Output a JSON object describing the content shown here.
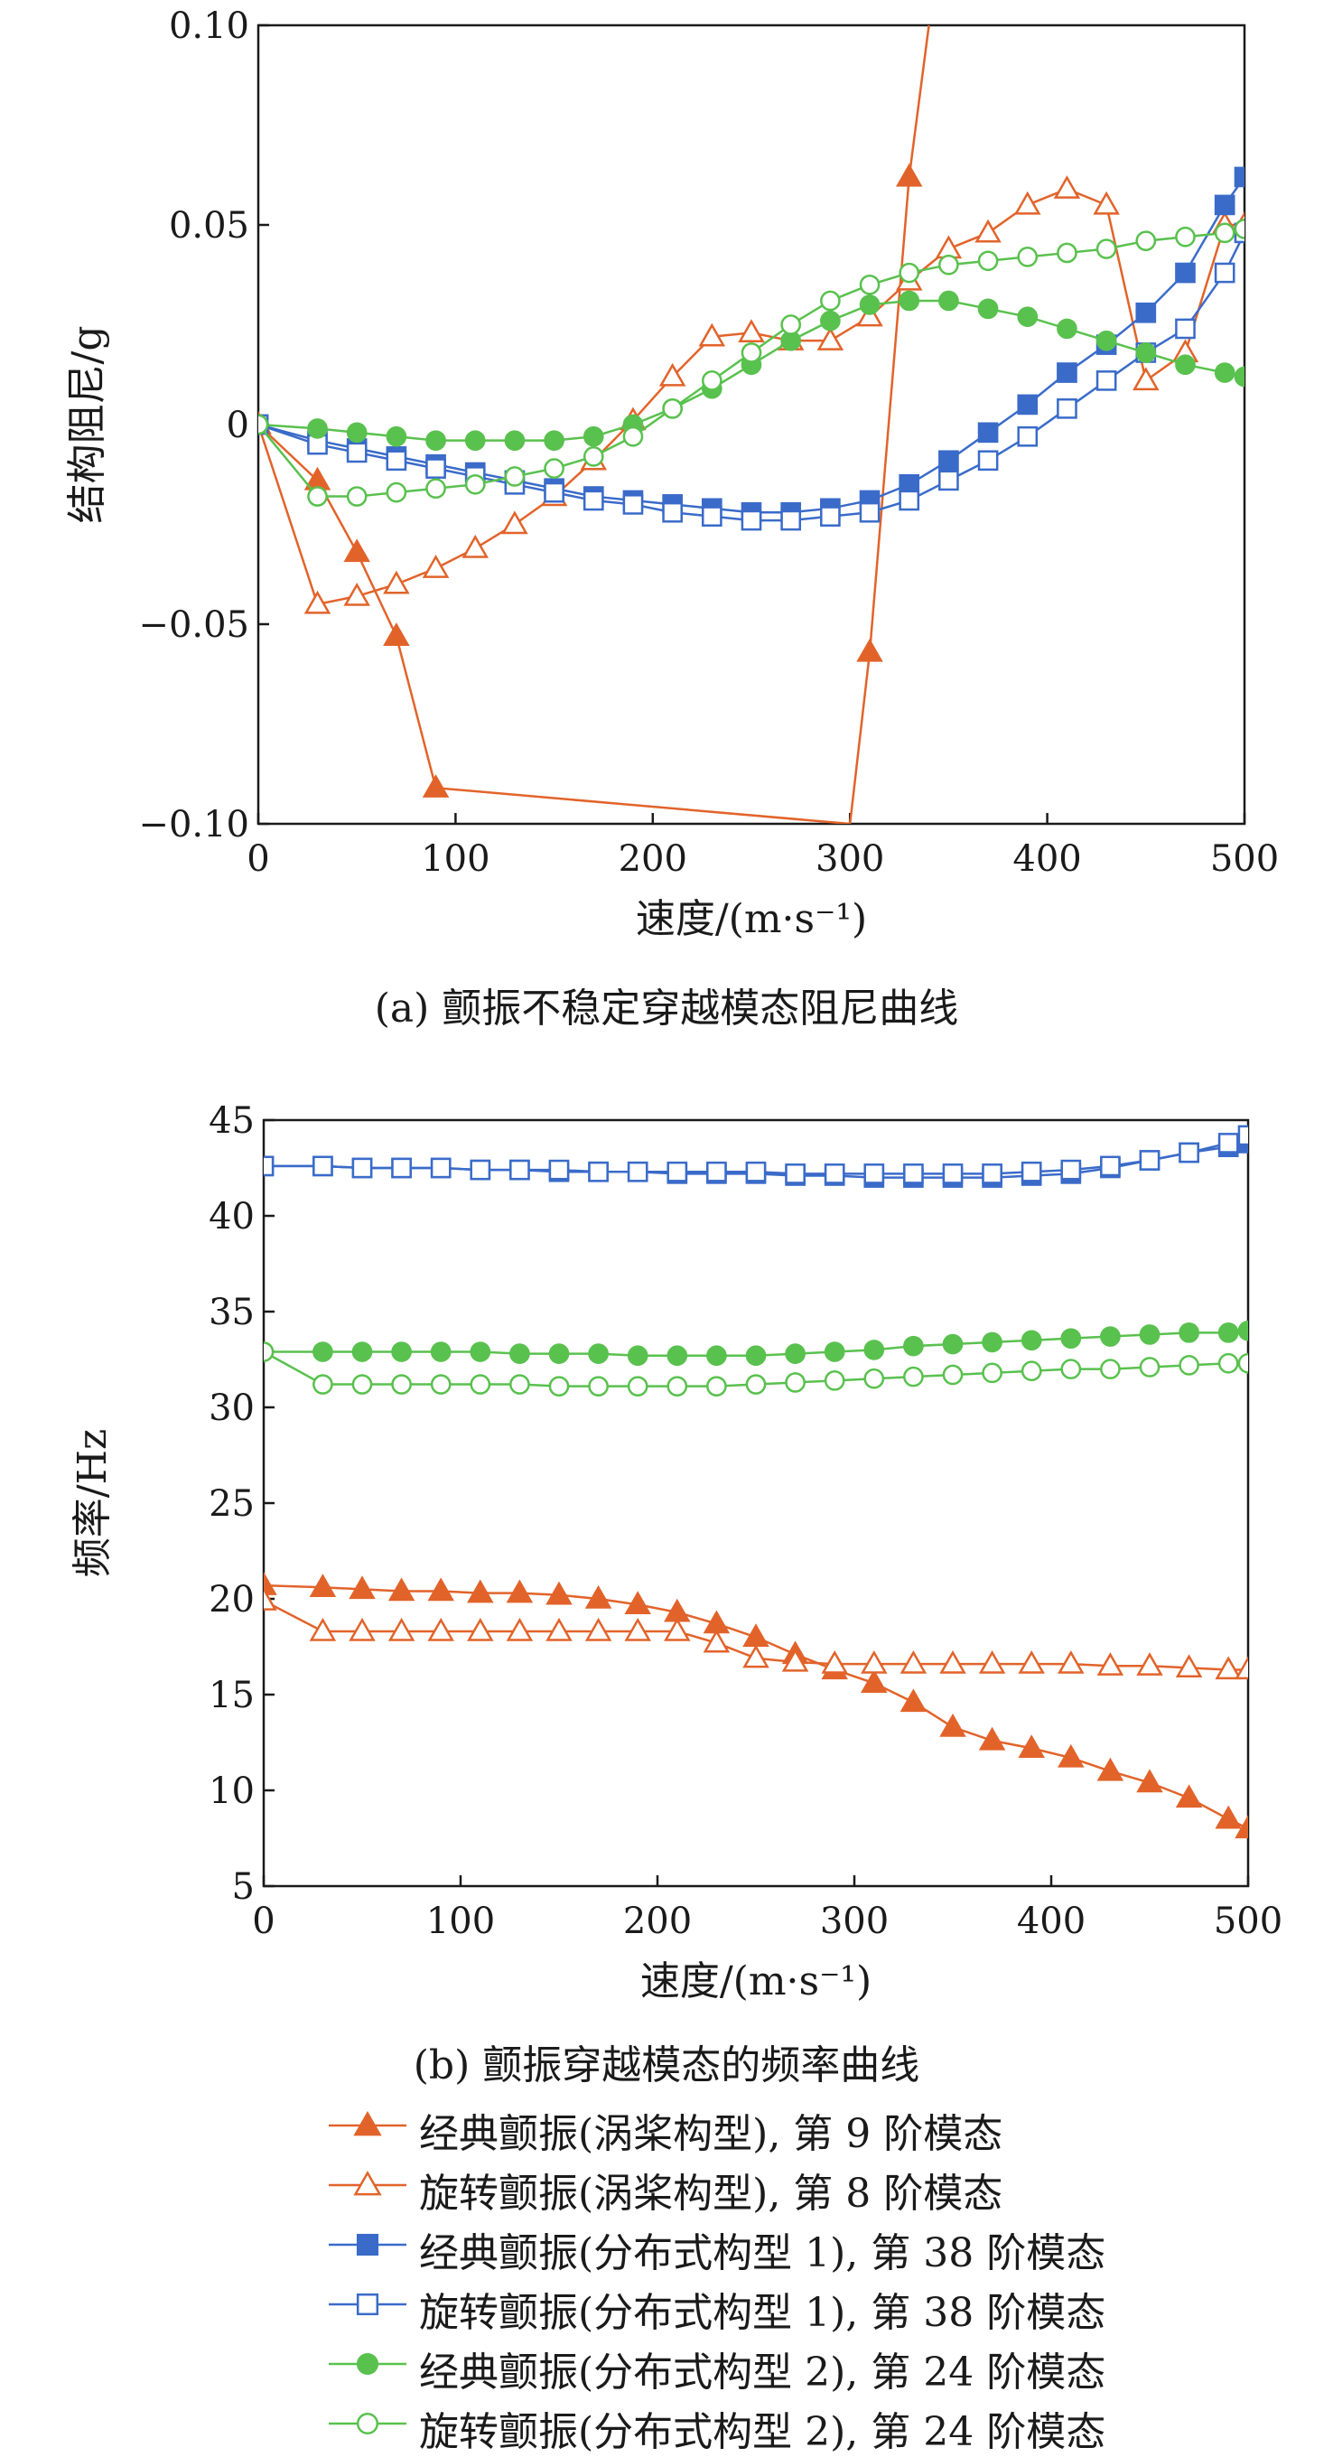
{
  "chart_data": [
    {
      "type": "line",
      "caption": "(a) 颤振不稳定穿越模态阻尼曲线",
      "xlabel": "速度/(m·s⁻¹)",
      "ylabel": "结构阻尼/g",
      "xlim": [
        0,
        500
      ],
      "ylim": [
        -0.1,
        0.1
      ],
      "xticks": [
        "0",
        "100",
        "200",
        "300",
        "400",
        "500"
      ],
      "yticks": [
        "−0.10",
        "−0.05",
        "0",
        "0.05",
        "0.10"
      ],
      "grid": false,
      "series": [
        {
          "name": "经典颤振(涡桨构型), 第 9 阶模态",
          "color": "#E2632A",
          "marker": "triangle-filled",
          "x": [
            0,
            30,
            50,
            70,
            90,
            300,
            310,
            330,
            340
          ],
          "y": [
            0,
            -0.014,
            -0.032,
            -0.053,
            -0.091,
            -0.1,
            -0.057,
            0.062,
            0.1
          ]
        },
        {
          "name": "旋转颤振(涡桨构型), 第 8 阶模态",
          "color": "#E2632A",
          "marker": "triangle-open",
          "x": [
            0,
            30,
            50,
            70,
            90,
            110,
            130,
            150,
            170,
            190,
            210,
            230,
            250,
            270,
            290,
            310,
            330,
            350,
            370,
            390,
            410,
            430,
            450,
            470,
            490,
            500
          ],
          "y": [
            0,
            -0.045,
            -0.043,
            -0.04,
            -0.036,
            -0.031,
            -0.025,
            -0.018,
            -0.009,
            0.001,
            0.012,
            0.022,
            0.023,
            0.021,
            0.021,
            0.027,
            0.036,
            0.044,
            0.048,
            0.055,
            0.059,
            0.055,
            0.011,
            0.018,
            0.05,
            0.05
          ]
        },
        {
          "name": "经典颤振(分布式构型 1), 第 38 阶模态",
          "color": "#3A6BC9",
          "marker": "square-filled",
          "x": [
            0,
            30,
            50,
            70,
            90,
            110,
            130,
            150,
            170,
            190,
            210,
            230,
            250,
            270,
            290,
            310,
            330,
            350,
            370,
            390,
            410,
            430,
            450,
            470,
            490,
            500
          ],
          "y": [
            0,
            -0.004,
            -0.006,
            -0.008,
            -0.01,
            -0.012,
            -0.014,
            -0.016,
            -0.018,
            -0.019,
            -0.02,
            -0.021,
            -0.022,
            -0.022,
            -0.021,
            -0.019,
            -0.015,
            -0.009,
            -0.002,
            0.005,
            0.013,
            0.02,
            0.028,
            0.038,
            0.055,
            0.062
          ]
        },
        {
          "name": "旋转颤振(分布式构型 1), 第 38 阶模态",
          "color": "#3A6BC9",
          "marker": "square-open",
          "x": [
            0,
            30,
            50,
            70,
            90,
            110,
            130,
            150,
            170,
            190,
            210,
            230,
            250,
            270,
            290,
            310,
            330,
            350,
            370,
            390,
            410,
            430,
            450,
            470,
            490,
            500
          ],
          "y": [
            0,
            -0.005,
            -0.007,
            -0.009,
            -0.011,
            -0.013,
            -0.015,
            -0.017,
            -0.019,
            -0.02,
            -0.022,
            -0.023,
            -0.024,
            -0.024,
            -0.023,
            -0.022,
            -0.019,
            -0.014,
            -0.009,
            -0.003,
            0.004,
            0.011,
            0.018,
            0.024,
            0.038,
            0.048
          ]
        },
        {
          "name": "经典颤振(分布式构型 2), 第 24 阶模态",
          "color": "#59C14E",
          "marker": "circle-filled",
          "x": [
            0,
            30,
            50,
            70,
            90,
            110,
            130,
            150,
            170,
            190,
            210,
            230,
            250,
            270,
            290,
            310,
            330,
            350,
            370,
            390,
            410,
            430,
            450,
            470,
            490,
            500
          ],
          "y": [
            0,
            -0.001,
            -0.002,
            -0.003,
            -0.004,
            -0.004,
            -0.004,
            -0.004,
            -0.003,
            0,
            0.004,
            0.009,
            0.015,
            0.021,
            0.026,
            0.03,
            0.031,
            0.031,
            0.029,
            0.027,
            0.024,
            0.021,
            0.018,
            0.015,
            0.013,
            0.012
          ]
        },
        {
          "name": "旋转颤振(分布式构型 2), 第 24 阶模态",
          "color": "#59C14E",
          "marker": "circle-open",
          "x": [
            0,
            30,
            50,
            70,
            90,
            110,
            130,
            150,
            170,
            190,
            210,
            230,
            250,
            270,
            290,
            310,
            330,
            350,
            370,
            390,
            410,
            430,
            450,
            470,
            490,
            500
          ],
          "y": [
            0,
            -0.018,
            -0.018,
            -0.017,
            -0.016,
            -0.015,
            -0.013,
            -0.011,
            -0.008,
            -0.003,
            0.004,
            0.011,
            0.018,
            0.025,
            0.031,
            0.035,
            0.038,
            0.04,
            0.041,
            0.042,
            0.043,
            0.044,
            0.046,
            0.047,
            0.048,
            0.049
          ]
        }
      ]
    },
    {
      "type": "line",
      "caption": "(b) 颤振穿越模态的频率曲线",
      "xlabel": "速度/(m·s⁻¹)",
      "ylabel": "频率/Hz",
      "xlim": [
        0,
        500
      ],
      "ylim": [
        5,
        45
      ],
      "xticks": [
        "0",
        "100",
        "200",
        "300",
        "400",
        "500"
      ],
      "yticks": [
        "5",
        "10",
        "15",
        "20",
        "25",
        "30",
        "35",
        "40",
        "45"
      ],
      "grid": false,
      "series": [
        {
          "name": "经典颤振(涡桨构型), 第 9 阶模态",
          "color": "#E2632A",
          "marker": "triangle-filled",
          "x": [
            0,
            30,
            50,
            70,
            90,
            110,
            130,
            150,
            170,
            190,
            210,
            230,
            250,
            270,
            290,
            310,
            330,
            350,
            370,
            390,
            410,
            430,
            450,
            470,
            490,
            500
          ],
          "y": [
            20.7,
            20.6,
            20.5,
            20.4,
            20.4,
            20.3,
            20.3,
            20.2,
            20.0,
            19.7,
            19.3,
            18.7,
            18.0,
            17.1,
            16.3,
            15.6,
            14.6,
            13.3,
            12.6,
            12.2,
            11.7,
            11.0,
            10.4,
            9.6,
            8.5,
            8.0
          ]
        },
        {
          "name": "旋转颤振(涡桨构型), 第 8 阶模态",
          "color": "#E2632A",
          "marker": "triangle-open",
          "x": [
            0,
            30,
            50,
            70,
            90,
            110,
            130,
            150,
            170,
            190,
            210,
            230,
            250,
            270,
            290,
            310,
            330,
            350,
            370,
            390,
            410,
            430,
            450,
            470,
            490,
            500
          ],
          "y": [
            19.9,
            18.3,
            18.3,
            18.3,
            18.3,
            18.3,
            18.3,
            18.3,
            18.3,
            18.3,
            18.3,
            17.7,
            16.9,
            16.7,
            16.6,
            16.6,
            16.6,
            16.6,
            16.6,
            16.6,
            16.6,
            16.5,
            16.5,
            16.4,
            16.3,
            16.3
          ]
        },
        {
          "name": "经典颤振(分布式构型 1), 第 38 阶模态",
          "color": "#3A6BC9",
          "marker": "square-filled",
          "x": [
            0,
            30,
            50,
            70,
            90,
            110,
            130,
            150,
            170,
            190,
            210,
            230,
            250,
            270,
            290,
            310,
            330,
            350,
            370,
            390,
            410,
            430,
            450,
            470,
            490,
            500
          ],
          "y": [
            42.6,
            42.6,
            42.5,
            42.5,
            42.5,
            42.4,
            42.4,
            42.3,
            42.3,
            42.3,
            42.2,
            42.2,
            42.2,
            42.1,
            42.1,
            42.0,
            42.0,
            42.0,
            42.0,
            42.1,
            42.2,
            42.5,
            42.9,
            43.3,
            43.6,
            43.8
          ]
        },
        {
          "name": "旋转颤振(分布式构型 1), 第 38 阶模态",
          "color": "#3A6BC9",
          "marker": "square-open",
          "x": [
            0,
            30,
            50,
            70,
            90,
            110,
            130,
            150,
            170,
            190,
            210,
            230,
            250,
            270,
            290,
            310,
            330,
            350,
            370,
            390,
            410,
            430,
            450,
            470,
            490,
            500
          ],
          "y": [
            42.6,
            42.6,
            42.5,
            42.5,
            42.5,
            42.4,
            42.4,
            42.4,
            42.3,
            42.3,
            42.3,
            42.3,
            42.3,
            42.2,
            42.2,
            42.2,
            42.2,
            42.2,
            42.2,
            42.3,
            42.4,
            42.6,
            42.9,
            43.3,
            43.8,
            44.2
          ]
        },
        {
          "name": "经典颤振(分布式构型 2), 第 24 阶模态",
          "color": "#59C14E",
          "marker": "circle-filled",
          "x": [
            0,
            30,
            50,
            70,
            90,
            110,
            130,
            150,
            170,
            190,
            210,
            230,
            250,
            270,
            290,
            310,
            330,
            350,
            370,
            390,
            410,
            430,
            450,
            470,
            490,
            500
          ],
          "y": [
            32.9,
            32.9,
            32.9,
            32.9,
            32.9,
            32.9,
            32.8,
            32.8,
            32.8,
            32.7,
            32.7,
            32.7,
            32.7,
            32.8,
            32.9,
            33.0,
            33.2,
            33.3,
            33.4,
            33.5,
            33.6,
            33.7,
            33.8,
            33.9,
            33.9,
            34.0
          ]
        },
        {
          "name": "旋转颤振(分布式构型 2), 第 24 阶模态",
          "color": "#59C14E",
          "marker": "circle-open",
          "x": [
            0,
            30,
            50,
            70,
            90,
            110,
            130,
            150,
            170,
            190,
            210,
            230,
            250,
            270,
            290,
            310,
            330,
            350,
            370,
            390,
            410,
            430,
            450,
            470,
            490,
            500
          ],
          "y": [
            32.9,
            31.2,
            31.2,
            31.2,
            31.2,
            31.2,
            31.2,
            31.1,
            31.1,
            31.1,
            31.1,
            31.1,
            31.2,
            31.3,
            31.4,
            31.5,
            31.6,
            31.7,
            31.8,
            31.9,
            32.0,
            32.0,
            32.1,
            32.2,
            32.3,
            32.3
          ]
        }
      ]
    }
  ],
  "legend": [
    {
      "label": "经典颤振(涡桨构型), 第 9 阶模态",
      "color": "#E2632A",
      "marker": "triangle-filled"
    },
    {
      "label": "旋转颤振(涡桨构型), 第 8 阶模态",
      "color": "#E2632A",
      "marker": "triangle-open"
    },
    {
      "label": "经典颤振(分布式构型 1), 第 38 阶模态",
      "color": "#3A6BC9",
      "marker": "square-filled"
    },
    {
      "label": "旋转颤振(分布式构型 1), 第 38 阶模态",
      "color": "#3A6BC9",
      "marker": "square-open"
    },
    {
      "label": "经典颤振(分布式构型 2), 第 24 阶模态",
      "color": "#59C14E",
      "marker": "circle-filled"
    },
    {
      "label": "旋转颤振(分布式构型 2), 第 24 阶模态",
      "color": "#59C14E",
      "marker": "circle-open"
    }
  ]
}
